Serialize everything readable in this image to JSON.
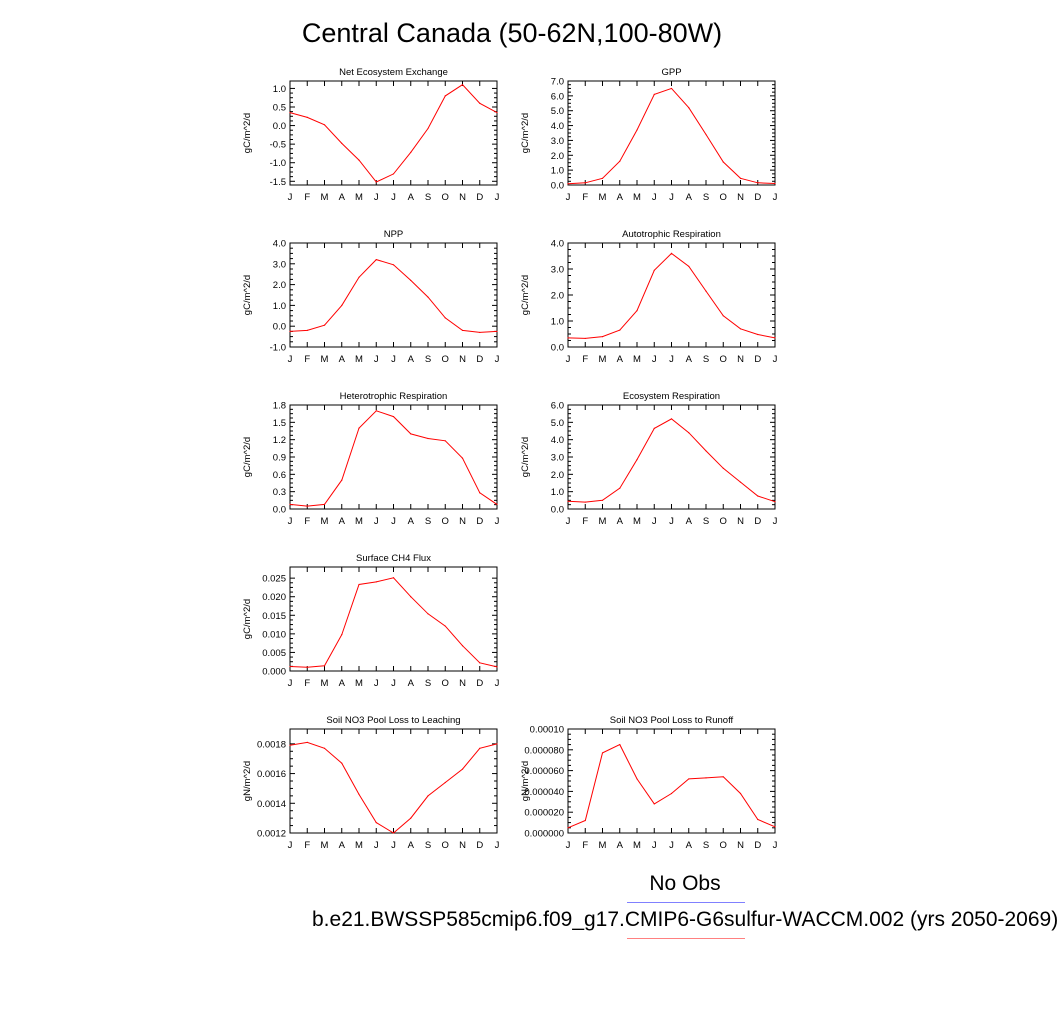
{
  "page": {
    "title": "Central Canada (50-62N,100-80W)"
  },
  "legend": {
    "obs_label": "No Obs",
    "model_label": "b.e21.BWSSP585cmip6.f09_g17.CMIP6-G6sulfur-WACCM.002 (yrs 2050-2069)",
    "obs_color": "#8080ff",
    "model_color": "#ff8080",
    "line_color": "#ff0000"
  },
  "chart_data": [
    {
      "type": "line",
      "title": "Net Ecosystem Exchange",
      "ylabel": "gC/m^2/d",
      "xlabel": "",
      "categories": [
        "J",
        "F",
        "M",
        "A",
        "M",
        "J",
        "J",
        "A",
        "S",
        "O",
        "N",
        "D",
        "J"
      ],
      "ylim": [
        -1.6,
        1.2
      ],
      "yticks": [
        "1.0",
        "0.5",
        "0.0",
        "-0.5",
        "-1.0",
        "-1.5"
      ],
      "series": [
        {
          "values": [
            0.35,
            0.22,
            0.02,
            -0.48,
            -0.93,
            -1.52,
            -1.3,
            -0.72,
            -0.08,
            0.8,
            1.1,
            0.6,
            0.35
          ]
        }
      ]
    },
    {
      "type": "line",
      "title": "GPP",
      "ylabel": "gC/m^2/d",
      "xlabel": "",
      "categories": [
        "J",
        "F",
        "M",
        "A",
        "M",
        "J",
        "J",
        "A",
        "S",
        "O",
        "N",
        "D",
        "J"
      ],
      "ylim": [
        0,
        7
      ],
      "yticks": [
        "7.0",
        "6.0",
        "5.0",
        "4.0",
        "3.0",
        "2.0",
        "1.0",
        "0.0"
      ],
      "series": [
        {
          "values": [
            0.08,
            0.15,
            0.45,
            1.6,
            3.7,
            6.1,
            6.5,
            5.2,
            3.4,
            1.55,
            0.45,
            0.15,
            0.1
          ]
        }
      ]
    },
    {
      "type": "line",
      "title": "NPP",
      "ylabel": "gC/m^2/d",
      "xlabel": "",
      "categories": [
        "J",
        "F",
        "M",
        "A",
        "M",
        "J",
        "J",
        "A",
        "S",
        "O",
        "N",
        "D",
        "J"
      ],
      "ylim": [
        -1,
        4
      ],
      "yticks": [
        "4.0",
        "3.0",
        "2.0",
        "1.0",
        "0.0",
        "-1.0"
      ],
      "series": [
        {
          "values": [
            -0.25,
            -0.2,
            0.05,
            1.0,
            2.35,
            3.2,
            2.95,
            2.2,
            1.4,
            0.4,
            -0.2,
            -0.3,
            -0.25
          ]
        }
      ]
    },
    {
      "type": "line",
      "title": "Autotrophic Respiration",
      "ylabel": "gC/m^2/d",
      "xlabel": "",
      "categories": [
        "J",
        "F",
        "M",
        "A",
        "M",
        "J",
        "J",
        "A",
        "S",
        "O",
        "N",
        "D",
        "J"
      ],
      "ylim": [
        0,
        4
      ],
      "yticks": [
        "4.0",
        "3.0",
        "2.0",
        "1.0",
        "0.0"
      ],
      "series": [
        {
          "values": [
            0.35,
            0.33,
            0.4,
            0.65,
            1.4,
            2.95,
            3.6,
            3.1,
            2.15,
            1.2,
            0.7,
            0.48,
            0.35
          ]
        }
      ]
    },
    {
      "type": "line",
      "title": "Heterotrophic Respiration",
      "ylabel": "gC/m^2/d",
      "xlabel": "",
      "categories": [
        "J",
        "F",
        "M",
        "A",
        "M",
        "J",
        "J",
        "A",
        "S",
        "O",
        "N",
        "D",
        "J"
      ],
      "ylim": [
        0,
        1.8
      ],
      "yticks": [
        "1.8",
        "1.5",
        "1.2",
        "0.9",
        "0.6",
        "0.3",
        "0.0"
      ],
      "series": [
        {
          "values": [
            0.08,
            0.05,
            0.08,
            0.5,
            1.4,
            1.7,
            1.6,
            1.3,
            1.22,
            1.18,
            0.88,
            0.28,
            0.08
          ]
        }
      ]
    },
    {
      "type": "line",
      "title": "Ecosystem Respiration",
      "ylabel": "gC/m^2/d",
      "xlabel": "",
      "categories": [
        "J",
        "F",
        "M",
        "A",
        "M",
        "J",
        "J",
        "A",
        "S",
        "O",
        "N",
        "D",
        "J"
      ],
      "ylim": [
        0,
        6
      ],
      "yticks": [
        "6.0",
        "5.0",
        "4.0",
        "3.0",
        "2.0",
        "1.0",
        "0.0"
      ],
      "series": [
        {
          "values": [
            0.45,
            0.4,
            0.5,
            1.2,
            2.85,
            4.65,
            5.2,
            4.4,
            3.35,
            2.35,
            1.55,
            0.75,
            0.42
          ]
        }
      ]
    },
    {
      "type": "line",
      "title": "Surface CH4 Flux",
      "ylabel": "gC/m^2/d",
      "xlabel": "",
      "categories": [
        "J",
        "F",
        "M",
        "A",
        "M",
        "J",
        "J",
        "A",
        "S",
        "O",
        "N",
        "D",
        "J"
      ],
      "ylim": [
        0,
        0.028
      ],
      "yticks": [
        "0.025",
        "0.020",
        "0.015",
        "0.010",
        "0.005",
        "0.000"
      ],
      "series": [
        {
          "values": [
            0.0012,
            0.001,
            0.0014,
            0.0098,
            0.0233,
            0.024,
            0.0251,
            0.02,
            0.0154,
            0.0121,
            0.0068,
            0.0022,
            0.0011
          ]
        }
      ]
    },
    {
      "type": "line",
      "title": "Soil NO3 Pool Loss to Leaching",
      "ylabel": "gN/m^2/d",
      "xlabel": "",
      "categories": [
        "J",
        "F",
        "M",
        "A",
        "M",
        "J",
        "J",
        "A",
        "S",
        "O",
        "N",
        "D",
        "J"
      ],
      "ylim": [
        0.0012,
        0.0019
      ],
      "yticks": [
        "0.0018",
        "0.0016",
        "0.0014",
        "0.0012"
      ],
      "series": [
        {
          "values": [
            0.00179,
            0.00181,
            0.00177,
            0.00167,
            0.00146,
            0.00127,
            0.0012,
            0.0013,
            0.00145,
            0.00154,
            0.00163,
            0.00177,
            0.0018
          ]
        }
      ]
    },
    {
      "type": "line",
      "title": "Soil NO3 Pool Loss to Runoff",
      "ylabel": "gN/m^2/d",
      "xlabel": "",
      "categories": [
        "J",
        "F",
        "M",
        "A",
        "M",
        "J",
        "J",
        "A",
        "S",
        "O",
        "N",
        "D",
        "J"
      ],
      "ylim": [
        0,
        0.0001
      ],
      "yticks": [
        "0.00010",
        "0.000080",
        "0.000060",
        "0.000040",
        "0.000020",
        "0.000000"
      ],
      "series": [
        {
          "values": [
            5e-06,
            1.2e-05,
            7.7e-05,
            8.5e-05,
            5.2e-05,
            2.8e-05,
            3.8e-05,
            5.2e-05,
            5.3e-05,
            5.4e-05,
            3.8e-05,
            1.3e-05,
            6e-06
          ]
        }
      ]
    }
  ]
}
